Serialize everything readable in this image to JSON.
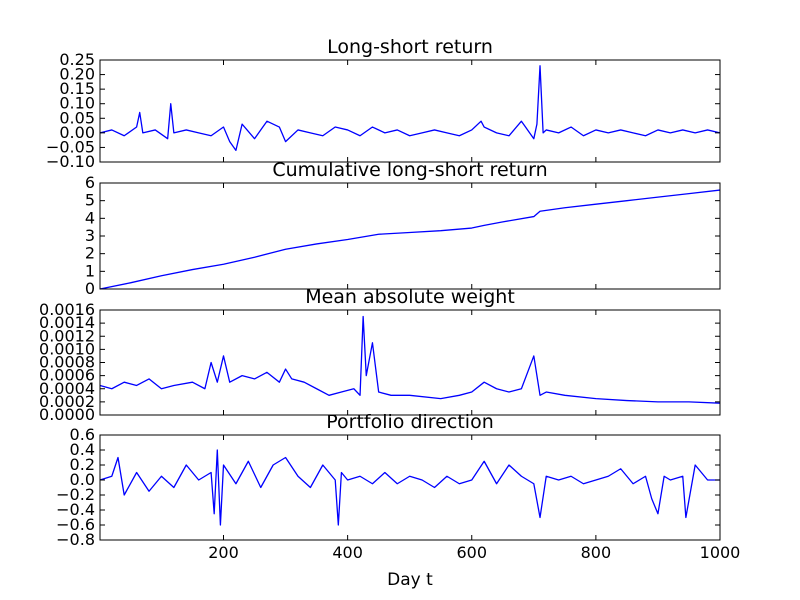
{
  "chart_data": [
    {
      "type": "line",
      "title": "Long-short return",
      "xlabel": "",
      "ylabel": "",
      "xlim": [
        1,
        1000
      ],
      "ylim": [
        -0.1,
        0.25
      ],
      "yticks": [
        -0.1,
        -0.05,
        0.0,
        0.05,
        0.1,
        0.15,
        0.2,
        0.25
      ],
      "ytick_labels": [
        "−0.10",
        "−0.05",
        "0.00",
        "0.05",
        "0.10",
        "0.15",
        "0.20",
        "0.25"
      ],
      "xticks": [
        200,
        400,
        600,
        800,
        1000
      ],
      "xtick_labels": [],
      "grid": false,
      "series": [
        {
          "color": "#0000ff",
          "x": [
            1,
            20,
            40,
            60,
            65,
            70,
            90,
            110,
            115,
            120,
            140,
            160,
            180,
            200,
            210,
            220,
            230,
            250,
            270,
            290,
            300,
            320,
            340,
            360,
            380,
            400,
            420,
            440,
            460,
            480,
            500,
            520,
            540,
            560,
            580,
            600,
            615,
            620,
            640,
            660,
            680,
            690,
            700,
            705,
            710,
            715,
            720,
            740,
            760,
            780,
            800,
            820,
            840,
            860,
            880,
            900,
            920,
            940,
            960,
            980,
            1000
          ],
          "y": [
            0.0,
            0.01,
            -0.01,
            0.02,
            0.07,
            0.0,
            0.01,
            -0.02,
            0.1,
            0.0,
            0.01,
            0.0,
            -0.01,
            0.02,
            -0.03,
            -0.06,
            0.03,
            -0.02,
            0.04,
            0.02,
            -0.03,
            0.01,
            0.0,
            -0.01,
            0.02,
            0.01,
            -0.01,
            0.02,
            0.0,
            0.01,
            -0.01,
            0.0,
            0.01,
            0.0,
            -0.01,
            0.01,
            0.04,
            0.02,
            0.0,
            -0.01,
            0.04,
            0.01,
            -0.02,
            0.03,
            0.23,
            0.0,
            0.01,
            0.0,
            0.02,
            -0.01,
            0.01,
            0.0,
            0.01,
            0.0,
            -0.01,
            0.01,
            0.0,
            0.01,
            0.0,
            0.01,
            0.0
          ]
        }
      ]
    },
    {
      "type": "line",
      "title": "Cumulative long-short return",
      "xlabel": "",
      "ylabel": "",
      "xlim": [
        1,
        1000
      ],
      "ylim": [
        0,
        6
      ],
      "yticks": [
        0,
        1,
        2,
        3,
        4,
        5,
        6
      ],
      "ytick_labels": [
        "0",
        "1",
        "2",
        "3",
        "4",
        "5",
        "6"
      ],
      "xticks": [
        200,
        400,
        600,
        800,
        1000
      ],
      "xtick_labels": [],
      "grid": false,
      "series": [
        {
          "color": "#0000ff",
          "x": [
            1,
            50,
            100,
            150,
            200,
            250,
            300,
            350,
            400,
            450,
            500,
            550,
            600,
            620,
            650,
            700,
            710,
            750,
            800,
            850,
            900,
            950,
            1000
          ],
          "y": [
            0.0,
            0.35,
            0.75,
            1.1,
            1.4,
            1.8,
            2.25,
            2.55,
            2.8,
            3.1,
            3.2,
            3.3,
            3.45,
            3.6,
            3.8,
            4.1,
            4.4,
            4.6,
            4.8,
            5.0,
            5.2,
            5.4,
            5.6
          ]
        }
      ]
    },
    {
      "type": "line",
      "title": "Mean absolute weight",
      "xlabel": "",
      "ylabel": "",
      "xlim": [
        1,
        1000
      ],
      "ylim": [
        0,
        0.0016
      ],
      "yticks": [
        0,
        0.0002,
        0.0004,
        0.0006,
        0.0008,
        0.001,
        0.0012,
        0.0014,
        0.0016
      ],
      "ytick_labels": [
        "0.0000",
        "0.0002",
        "0.0004",
        "0.0006",
        "0.0008",
        "0.0010",
        "0.0012",
        "0.0014",
        "0.0016"
      ],
      "xticks": [
        200,
        400,
        600,
        800,
        1000
      ],
      "xtick_labels": [],
      "grid": false,
      "series": [
        {
          "color": "#0000ff",
          "x": [
            1,
            20,
            40,
            60,
            80,
            100,
            120,
            150,
            170,
            180,
            190,
            200,
            210,
            230,
            250,
            270,
            290,
            300,
            310,
            330,
            350,
            370,
            390,
            410,
            420,
            425,
            430,
            440,
            450,
            470,
            500,
            550,
            580,
            600,
            620,
            640,
            660,
            680,
            700,
            710,
            720,
            750,
            800,
            850,
            900,
            950,
            1000
          ],
          "y": [
            0.00045,
            0.0004,
            0.0005,
            0.00045,
            0.00055,
            0.0004,
            0.00045,
            0.0005,
            0.0004,
            0.0008,
            0.0005,
            0.0009,
            0.0005,
            0.0006,
            0.00055,
            0.00065,
            0.0005,
            0.0007,
            0.00055,
            0.0005,
            0.0004,
            0.0003,
            0.00035,
            0.0004,
            0.0003,
            0.0015,
            0.0006,
            0.0011,
            0.00035,
            0.0003,
            0.0003,
            0.00025,
            0.0003,
            0.00035,
            0.0005,
            0.0004,
            0.00035,
            0.0004,
            0.0009,
            0.0003,
            0.00035,
            0.0003,
            0.00025,
            0.00022,
            0.0002,
            0.0002,
            0.00018
          ]
        }
      ]
    },
    {
      "type": "line",
      "title": "Portfolio direction",
      "xlabel": "Day t",
      "ylabel": "",
      "xlim": [
        1,
        1000
      ],
      "ylim": [
        -0.8,
        0.6
      ],
      "yticks": [
        -0.8,
        -0.6,
        -0.4,
        -0.2,
        0.0,
        0.2,
        0.4,
        0.6
      ],
      "ytick_labels": [
        "−0.8",
        "−0.6",
        "−0.4",
        "−0.2",
        "0.0",
        "0.2",
        "0.4",
        "0.6"
      ],
      "xticks": [
        200,
        400,
        600,
        800,
        1000
      ],
      "xtick_labels": [
        "200",
        "400",
        "600",
        "800",
        "1000"
      ],
      "grid": false,
      "series": [
        {
          "color": "#0000ff",
          "x": [
            1,
            20,
            30,
            40,
            60,
            80,
            100,
            120,
            140,
            160,
            180,
            185,
            190,
            195,
            200,
            220,
            240,
            260,
            280,
            300,
            320,
            340,
            360,
            380,
            385,
            390,
            400,
            420,
            440,
            460,
            480,
            500,
            520,
            540,
            560,
            580,
            600,
            620,
            640,
            660,
            680,
            700,
            710,
            720,
            740,
            760,
            780,
            800,
            820,
            840,
            860,
            880,
            890,
            900,
            910,
            920,
            940,
            945,
            960,
            980,
            1000
          ],
          "y": [
            0.0,
            0.05,
            0.3,
            -0.2,
            0.1,
            -0.15,
            0.05,
            -0.1,
            0.2,
            0.0,
            0.1,
            -0.45,
            0.4,
            -0.6,
            0.2,
            -0.05,
            0.25,
            -0.1,
            0.2,
            0.3,
            0.05,
            -0.1,
            0.2,
            0.0,
            -0.6,
            0.1,
            0.0,
            0.05,
            -0.05,
            0.1,
            -0.05,
            0.05,
            0.0,
            -0.1,
            0.05,
            -0.05,
            0.0,
            0.25,
            -0.05,
            0.2,
            0.05,
            -0.05,
            -0.5,
            0.05,
            0.0,
            0.05,
            -0.05,
            0.0,
            0.05,
            0.15,
            -0.05,
            0.05,
            -0.25,
            -0.45,
            0.05,
            0.0,
            0.05,
            -0.5,
            0.2,
            0.0,
            0.0
          ]
        }
      ]
    }
  ]
}
